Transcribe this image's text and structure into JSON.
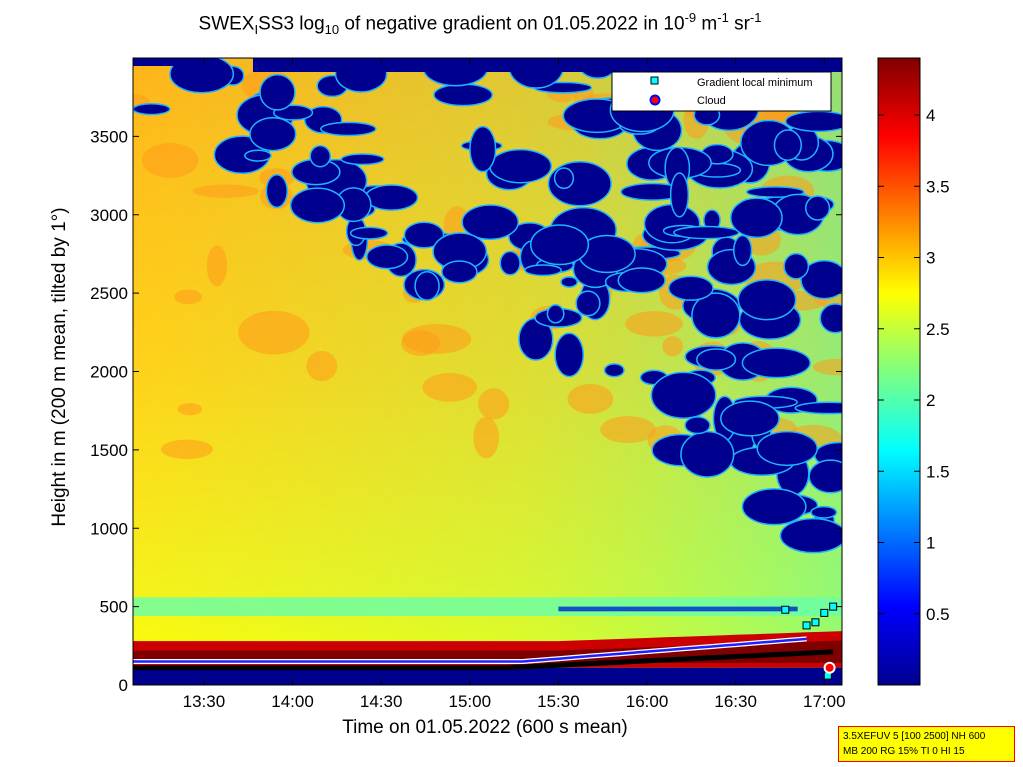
{
  "chart_data": {
    "type": "heatmap",
    "title": {
      "prefix": "SWEX",
      "prefix_sub": "I",
      "part2": "SS3 log",
      "log_sub": "10",
      "part3": " of negative gradient on 01.05.2022 in 10",
      "exp1": "-9",
      "part4": " m",
      "exp2": "-1",
      "part5": " sr",
      "exp3": "-1"
    },
    "xlabel": "Time on 01.05.2022 (600 s mean)",
    "ylabel": "Height in m (200 m mean, tilted by 1°)",
    "x_ticks": [
      "13:30",
      "14:00",
      "14:30",
      "15:00",
      "15:30",
      "16:00",
      "16:30",
      "17:00"
    ],
    "y_ticks": [
      "0",
      "500",
      "1000",
      "1500",
      "2000",
      "2500",
      "3000",
      "3500"
    ],
    "x_range_hours": [
      13.1,
      17.1
    ],
    "x_tick_hours": [
      13.5,
      14.0,
      14.5,
      15.0,
      15.5,
      16.0,
      16.5,
      17.0
    ],
    "y_range": [
      0,
      4000
    ],
    "y_tick_values": [
      0,
      500,
      1000,
      1500,
      2000,
      2500,
      3000,
      3500
    ],
    "colorbar": {
      "range": [
        0,
        4.4
      ],
      "ticks": [
        "0.5",
        "1",
        "1.5",
        "2",
        "2.5",
        "3",
        "3.5",
        "4"
      ],
      "tick_values": [
        0.5,
        1.0,
        1.5,
        2.0,
        2.5,
        3.0,
        3.5,
        4.0
      ]
    },
    "legend": {
      "placement": "top-right",
      "entries": [
        {
          "label": "Gradient local minimum",
          "marker": "square",
          "color": "#00ffff"
        },
        {
          "label": "Cloud",
          "marker": "circle",
          "color": "#ff0000"
        }
      ]
    },
    "colors": {
      "background_low": "#00008f",
      "colormap": "jet"
    }
  },
  "info_box": {
    "line1": "3.5XEFUV 5 [100 2500] NH 600",
    "line2": "MB 200 RG 15% TI 0 HI 15",
    "background": "#ffff00",
    "border": "#ff0000"
  }
}
